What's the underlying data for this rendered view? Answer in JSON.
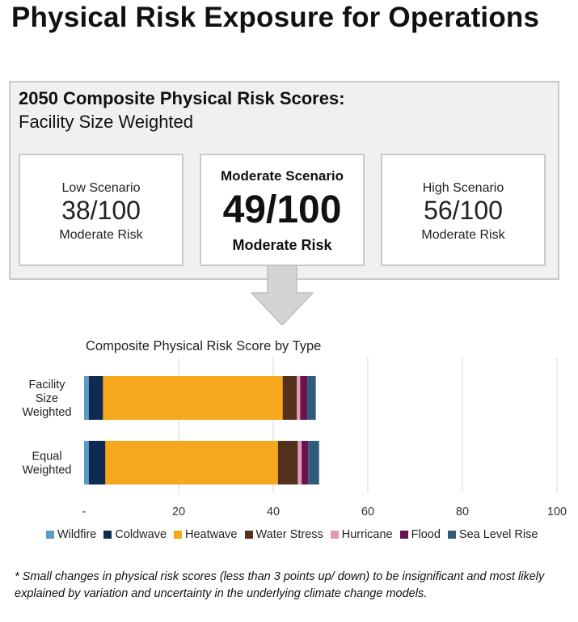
{
  "page": {
    "title": "Physical Risk Exposure for Operations"
  },
  "scores_panel": {
    "heading": "2050 Composite Physical Risk Scores:",
    "subheading": "Facility Size Weighted",
    "scenarios": [
      {
        "name": "Low Scenario",
        "score": "38/100",
        "level": "Moderate Risk"
      },
      {
        "name": "Moderate Scenario",
        "score": "49/100",
        "level": "Moderate Risk"
      },
      {
        "name": "High Scenario",
        "score": "56/100",
        "level": "Moderate Risk"
      }
    ]
  },
  "chart_data": {
    "type": "bar",
    "orientation": "horizontal",
    "stacked": true,
    "title": "Composite Physical Risk Score by Type",
    "categories": [
      [
        "Facility",
        "Size",
        "Weighted"
      ],
      [
        "Equal",
        "Weighted"
      ]
    ],
    "xlim": [
      0,
      100
    ],
    "xticks": [
      "-",
      "20",
      "40",
      "60",
      "80",
      "100"
    ],
    "grid": true,
    "legend_position": "bottom",
    "series": [
      {
        "name": "Wildfire",
        "color": "#5b9bc4",
        "values": [
          1.0,
          1.0
        ]
      },
      {
        "name": "Coldwave",
        "color": "#0e2a52",
        "values": [
          3.0,
          3.5
        ]
      },
      {
        "name": "Heatwave",
        "color": "#f5a81c",
        "values": [
          38.0,
          36.5
        ]
      },
      {
        "name": "Water Stress",
        "color": "#53311b",
        "values": [
          3.0,
          4.2
        ]
      },
      {
        "name": "Hurricane",
        "color": "#e39ab4",
        "values": [
          0.7,
          0.8
        ]
      },
      {
        "name": "Flood",
        "color": "#6b1150",
        "values": [
          1.5,
          1.4
        ]
      },
      {
        "name": "Sea Level Rise",
        "color": "#2f5c7a",
        "values": [
          1.8,
          2.3
        ]
      }
    ]
  },
  "footnote": "* Small changes in physical risk scores (less than 3 points up/ down) to be insignificant and most likely explained by variation and uncertainty in the underlying climate change models."
}
